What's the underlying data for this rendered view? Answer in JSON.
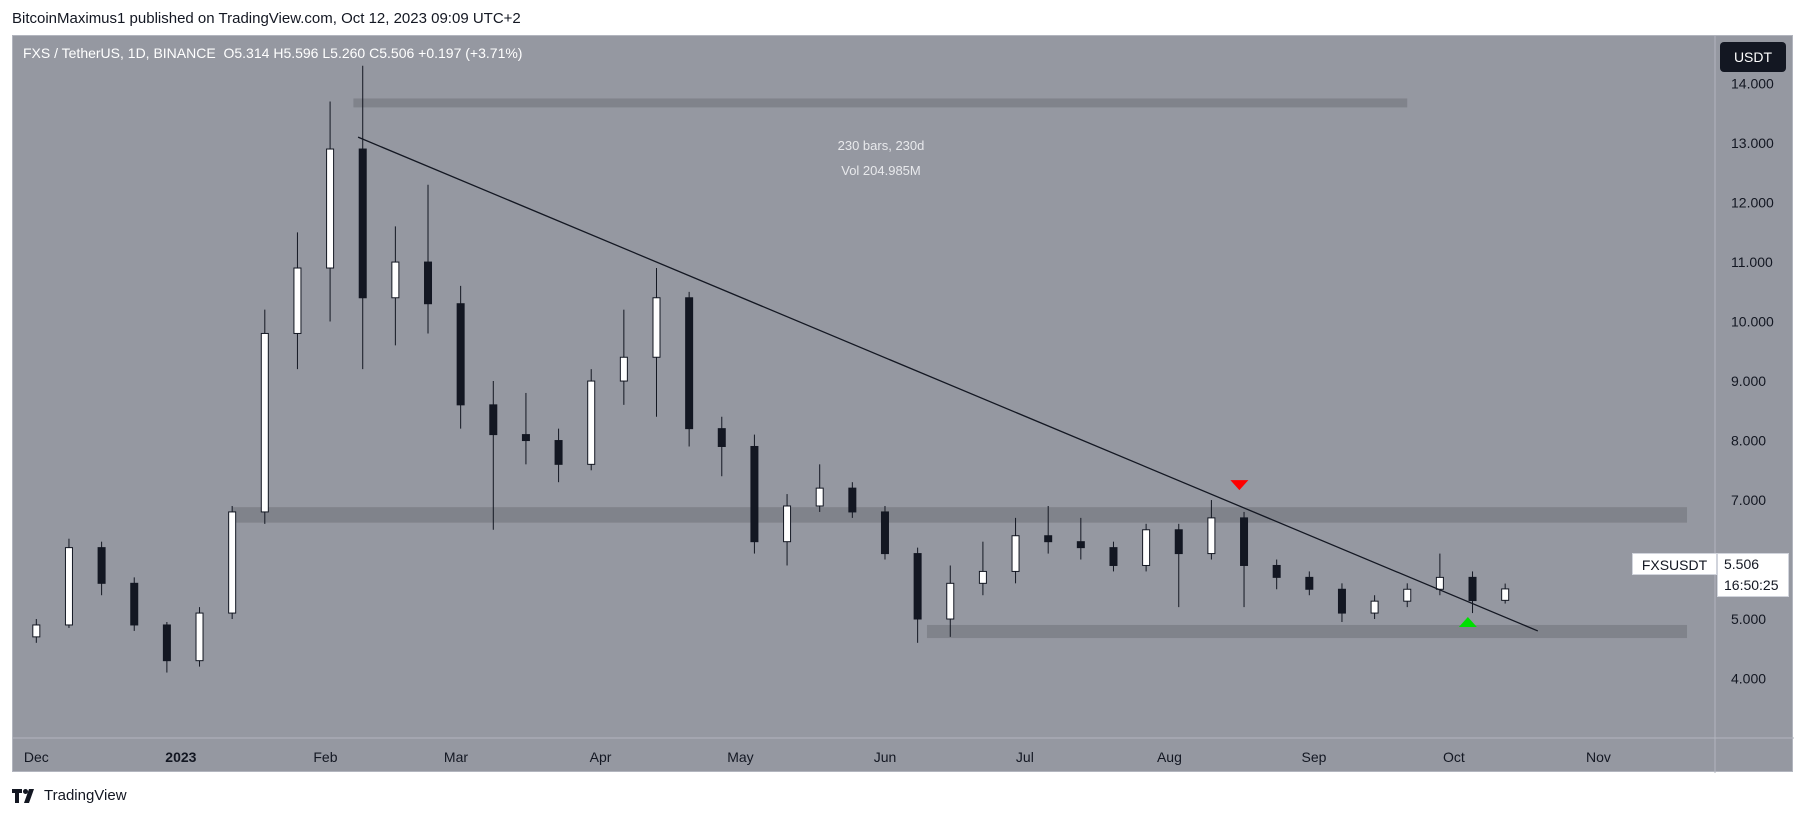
{
  "header": {
    "publisher_text": "BitcoinMaximus1 published on TradingView.com, Oct 12, 2023 09:09 UTC+2"
  },
  "legend": {
    "symbol": "FXS / TetherUS, 1D, BINANCE",
    "open_label": "O",
    "open": "5.314",
    "high_label": "H",
    "high": "5.596",
    "low_label": "L",
    "low": "5.260",
    "close_label": "C",
    "close": "5.506",
    "change": "+0.197 (+3.71%)"
  },
  "currency": "USDT",
  "measure": {
    "bars": "230 bars, 230d",
    "vol": "Vol 204.985M"
  },
  "last_price": {
    "symbol": "FXSUSDT",
    "price": "5.506",
    "countdown": "16:50:25"
  },
  "footer": {
    "brand": "TradingView"
  },
  "colors": {
    "background": "#9598a1",
    "candle_body": "#ffffff",
    "candle_outline": "#131722",
    "zone": "#80838b",
    "trendline": "#131722",
    "sell_marker": "#ff0000",
    "buy_marker": "#00e000",
    "axis_text": "#131722",
    "measure_text": "#e8e9ec"
  },
  "chart_data": {
    "type": "candlestick",
    "title": "FXS / TetherUS, 1D, BINANCE",
    "xlabel": "",
    "ylabel": "",
    "ylim": [
      3.0,
      14.8
    ],
    "price_ticks": [
      "4.000",
      "5.000",
      "6.000",
      "7.000",
      "8.000",
      "9.000",
      "10.000",
      "11.000",
      "12.000",
      "13.000",
      "14.000"
    ],
    "time_ticks": [
      {
        "label": "Dec",
        "date": "2022-12-01",
        "bold": false
      },
      {
        "label": "2023",
        "date": "2023-01-01",
        "bold": true
      },
      {
        "label": "Feb",
        "date": "2023-02-01",
        "bold": false
      },
      {
        "label": "Mar",
        "date": "2023-03-01",
        "bold": false
      },
      {
        "label": "Apr",
        "date": "2023-04-01",
        "bold": false
      },
      {
        "label": "May",
        "date": "2023-05-01",
        "bold": false
      },
      {
        "label": "Jun",
        "date": "2023-06-01",
        "bold": false
      },
      {
        "label": "Jul",
        "date": "2023-07-01",
        "bold": false
      },
      {
        "label": "Aug",
        "date": "2023-08-01",
        "bold": false
      },
      {
        "label": "Sep",
        "date": "2023-09-01",
        "bold": false
      },
      {
        "label": "Oct",
        "date": "2023-10-01",
        "bold": false
      },
      {
        "label": "Nov",
        "date": "2023-11-01",
        "bold": false
      }
    ],
    "candles_weekly_approx": [
      {
        "date": "2022-12-01",
        "o": 4.7,
        "h": 5.0,
        "l": 4.6,
        "c": 4.9
      },
      {
        "date": "2022-12-08",
        "o": 4.9,
        "h": 6.35,
        "l": 4.85,
        "c": 6.2
      },
      {
        "date": "2022-12-15",
        "o": 6.2,
        "h": 6.3,
        "l": 5.4,
        "c": 5.6
      },
      {
        "date": "2022-12-22",
        "o": 5.6,
        "h": 5.7,
        "l": 4.8,
        "c": 4.9
      },
      {
        "date": "2022-12-29",
        "o": 4.9,
        "h": 4.95,
        "l": 4.1,
        "c": 4.3
      },
      {
        "date": "2023-01-05",
        "o": 4.3,
        "h": 5.2,
        "l": 4.2,
        "c": 5.1
      },
      {
        "date": "2023-01-12",
        "o": 5.1,
        "h": 6.9,
        "l": 5.0,
        "c": 6.8
      },
      {
        "date": "2023-01-19",
        "o": 6.8,
        "h": 10.2,
        "l": 6.6,
        "c": 9.8
      },
      {
        "date": "2023-01-26",
        "o": 9.8,
        "h": 11.5,
        "l": 9.2,
        "c": 10.9
      },
      {
        "date": "2023-02-02",
        "o": 10.9,
        "h": 13.7,
        "l": 10.0,
        "c": 12.9
      },
      {
        "date": "2023-02-09",
        "o": 12.9,
        "h": 14.3,
        "l": 9.2,
        "c": 10.4
      },
      {
        "date": "2023-02-16",
        "o": 10.4,
        "h": 11.6,
        "l": 9.6,
        "c": 11.0
      },
      {
        "date": "2023-02-23",
        "o": 11.0,
        "h": 12.3,
        "l": 9.8,
        "c": 10.3
      },
      {
        "date": "2023-03-02",
        "o": 10.3,
        "h": 10.6,
        "l": 8.2,
        "c": 8.6
      },
      {
        "date": "2023-03-09",
        "o": 8.6,
        "h": 9.0,
        "l": 6.5,
        "c": 8.1
      },
      {
        "date": "2023-03-16",
        "o": 8.1,
        "h": 8.8,
        "l": 7.6,
        "c": 8.0
      },
      {
        "date": "2023-03-23",
        "o": 8.0,
        "h": 8.2,
        "l": 7.3,
        "c": 7.6
      },
      {
        "date": "2023-03-30",
        "o": 7.6,
        "h": 9.2,
        "l": 7.5,
        "c": 9.0
      },
      {
        "date": "2023-04-06",
        "o": 9.0,
        "h": 10.2,
        "l": 8.6,
        "c": 9.4
      },
      {
        "date": "2023-04-13",
        "o": 9.4,
        "h": 10.9,
        "l": 8.4,
        "c": 10.4
      },
      {
        "date": "2023-04-20",
        "o": 10.4,
        "h": 10.5,
        "l": 7.9,
        "c": 8.2
      },
      {
        "date": "2023-04-27",
        "o": 8.2,
        "h": 8.4,
        "l": 7.4,
        "c": 7.9
      },
      {
        "date": "2023-05-04",
        "o": 7.9,
        "h": 8.1,
        "l": 6.1,
        "c": 6.3
      },
      {
        "date": "2023-05-11",
        "o": 6.3,
        "h": 7.1,
        "l": 5.9,
        "c": 6.9
      },
      {
        "date": "2023-05-18",
        "o": 6.9,
        "h": 7.6,
        "l": 6.8,
        "c": 7.2
      },
      {
        "date": "2023-05-25",
        "o": 7.2,
        "h": 7.3,
        "l": 6.7,
        "c": 6.8
      },
      {
        "date": "2023-06-01",
        "o": 6.8,
        "h": 6.9,
        "l": 6.0,
        "c": 6.1
      },
      {
        "date": "2023-06-08",
        "o": 6.1,
        "h": 6.2,
        "l": 4.6,
        "c": 5.0
      },
      {
        "date": "2023-06-15",
        "o": 5.0,
        "h": 5.9,
        "l": 4.7,
        "c": 5.6
      },
      {
        "date": "2023-06-22",
        "o": 5.6,
        "h": 6.3,
        "l": 5.4,
        "c": 5.8
      },
      {
        "date": "2023-06-29",
        "o": 5.8,
        "h": 6.7,
        "l": 5.6,
        "c": 6.4
      },
      {
        "date": "2023-07-06",
        "o": 6.4,
        "h": 6.9,
        "l": 6.1,
        "c": 6.3
      },
      {
        "date": "2023-07-13",
        "o": 6.3,
        "h": 6.7,
        "l": 6.0,
        "c": 6.2
      },
      {
        "date": "2023-07-20",
        "o": 6.2,
        "h": 6.3,
        "l": 5.8,
        "c": 5.9
      },
      {
        "date": "2023-07-27",
        "o": 5.9,
        "h": 6.6,
        "l": 5.8,
        "c": 6.5
      },
      {
        "date": "2023-08-03",
        "o": 6.5,
        "h": 6.6,
        "l": 5.2,
        "c": 6.1
      },
      {
        "date": "2023-08-10",
        "o": 6.1,
        "h": 7.0,
        "l": 6.0,
        "c": 6.7
      },
      {
        "date": "2023-08-17",
        "o": 6.7,
        "h": 6.8,
        "l": 5.2,
        "c": 5.9
      },
      {
        "date": "2023-08-24",
        "o": 5.9,
        "h": 6.0,
        "l": 5.5,
        "c": 5.7
      },
      {
        "date": "2023-08-31",
        "o": 5.7,
        "h": 5.8,
        "l": 5.4,
        "c": 5.5
      },
      {
        "date": "2023-09-07",
        "o": 5.5,
        "h": 5.6,
        "l": 4.95,
        "c": 5.1
      },
      {
        "date": "2023-09-14",
        "o": 5.1,
        "h": 5.4,
        "l": 5.0,
        "c": 5.3
      },
      {
        "date": "2023-09-21",
        "o": 5.3,
        "h": 5.6,
        "l": 5.2,
        "c": 5.5
      },
      {
        "date": "2023-09-28",
        "o": 5.5,
        "h": 6.1,
        "l": 5.4,
        "c": 5.7
      },
      {
        "date": "2023-10-05",
        "o": 5.7,
        "h": 5.8,
        "l": 5.1,
        "c": 5.31
      },
      {
        "date": "2023-10-12",
        "o": 5.314,
        "h": 5.596,
        "l": 5.26,
        "c": 5.506
      }
    ],
    "horizontal_zones": [
      {
        "from": "2023-02-07",
        "to": "2023-09-21",
        "low": 13.6,
        "high": 13.75,
        "name": "top-zone"
      },
      {
        "from": "2023-01-12",
        "to": "2023-11-20",
        "low": 6.62,
        "high": 6.88,
        "name": "mid-zone"
      },
      {
        "from": "2023-06-10",
        "to": "2023-11-20",
        "low": 4.68,
        "high": 4.9,
        "name": "support-zone"
      }
    ],
    "trendline": {
      "from": {
        "date": "2023-02-08",
        "price": 13.1
      },
      "to": {
        "date": "2023-10-19",
        "price": 4.8
      }
    },
    "markers": [
      {
        "type": "sell",
        "date": "2023-08-16",
        "price": 7.25
      },
      {
        "type": "buy",
        "date": "2023-10-04",
        "price": 4.95
      }
    ],
    "last_price_value": 5.506
  }
}
